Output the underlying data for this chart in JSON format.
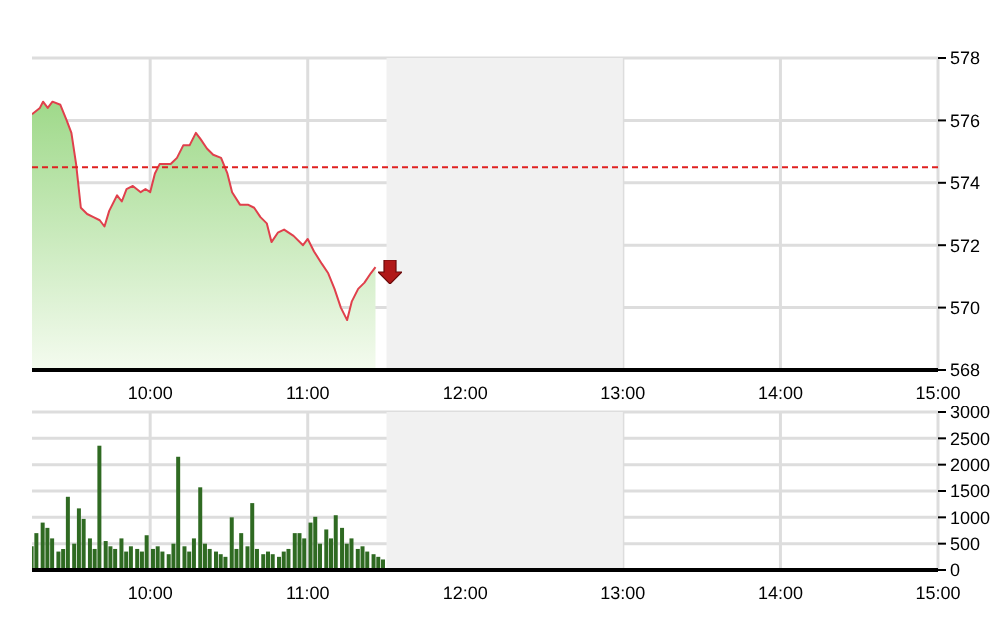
{
  "chart_data": [
    {
      "type": "area",
      "x": [
        9.25,
        9.3,
        9.32,
        9.35,
        9.38,
        9.43,
        9.47,
        9.5,
        9.53,
        9.56,
        9.6,
        9.64,
        9.68,
        9.71,
        9.74,
        9.79,
        9.82,
        9.85,
        9.89,
        9.94,
        9.97,
        10.0,
        10.03,
        10.06,
        10.13,
        10.17,
        10.21,
        10.25,
        10.29,
        10.32,
        10.36,
        10.4,
        10.45,
        10.49,
        10.52,
        10.57,
        10.62,
        10.66,
        10.7,
        10.74,
        10.77,
        10.81,
        10.85,
        10.91,
        10.97,
        11.0,
        11.04,
        11.09,
        11.13,
        11.17,
        11.21,
        11.25,
        11.28,
        11.32,
        11.36,
        11.4,
        11.43
      ],
      "values": [
        576.2,
        576.4,
        576.6,
        576.4,
        576.6,
        576.5,
        576.0,
        575.6,
        574.6,
        573.2,
        573.0,
        572.9,
        572.8,
        572.6,
        573.1,
        573.6,
        573.4,
        573.8,
        573.9,
        573.7,
        573.8,
        573.7,
        574.3,
        574.6,
        574.6,
        574.8,
        575.2,
        575.2,
        575.6,
        575.4,
        575.1,
        574.9,
        574.8,
        574.3,
        573.7,
        573.3,
        573.3,
        573.2,
        572.9,
        572.7,
        572.1,
        572.4,
        572.5,
        572.3,
        572.0,
        572.2,
        571.8,
        571.4,
        571.1,
        570.6,
        570.0,
        569.6,
        570.2,
        570.6,
        570.8,
        571.1,
        571.3
      ],
      "color": "#e0404c",
      "xlim": [
        9.25,
        15
      ],
      "xticks": [
        {
          "value": 10,
          "label": "10:00"
        },
        {
          "value": 11,
          "label": "11:00"
        },
        {
          "value": 12,
          "label": "12:00"
        },
        {
          "value": 13,
          "label": "13:00"
        },
        {
          "value": 14,
          "label": "14:00"
        },
        {
          "value": 15,
          "label": "15:00"
        }
      ],
      "ylim": [
        568,
        578
      ],
      "yticks": [
        568,
        570,
        572,
        574,
        576,
        578
      ],
      "ref_lines": [
        {
          "axis": "y",
          "value": 574.5,
          "color": "#e02020",
          "line_style": "dashed"
        }
      ],
      "bands": [
        {
          "axis": "x",
          "from": 11.5,
          "to": 13,
          "color": "#f1f1f1"
        }
      ],
      "grid": true
    },
    {
      "type": "bar",
      "x": [
        9.25,
        9.28,
        9.32,
        9.35,
        9.38,
        9.42,
        9.45,
        9.48,
        9.52,
        9.55,
        9.58,
        9.62,
        9.65,
        9.68,
        9.72,
        9.75,
        9.78,
        9.82,
        9.85,
        9.88,
        9.92,
        9.95,
        9.98,
        10.02,
        10.05,
        10.08,
        10.12,
        10.15,
        10.18,
        10.22,
        10.25,
        10.28,
        10.32,
        10.35,
        10.38,
        10.42,
        10.45,
        10.48,
        10.52,
        10.55,
        10.58,
        10.62,
        10.65,
        10.68,
        10.72,
        10.75,
        10.78,
        10.82,
        10.85,
        10.88,
        10.92,
        10.95,
        10.98,
        11.02,
        11.05,
        11.08,
        11.12,
        11.15,
        11.18,
        11.22,
        11.25,
        11.28,
        11.32,
        11.35,
        11.38,
        11.42,
        11.45,
        11.48
      ],
      "values": [
        450,
        700,
        900,
        800,
        600,
        350,
        400,
        1390,
        500,
        1170,
        970,
        600,
        400,
        2360,
        550,
        450,
        400,
        600,
        350,
        450,
        400,
        350,
        660,
        400,
        450,
        350,
        300,
        500,
        2150,
        450,
        350,
        600,
        1570,
        500,
        400,
        350,
        300,
        250,
        1000,
        400,
        700,
        450,
        1270,
        400,
        300,
        350,
        300,
        250,
        350,
        400,
        700,
        700,
        600,
        900,
        1010,
        500,
        770,
        600,
        1040,
        800,
        500,
        600,
        400,
        450,
        350,
        300,
        250,
        200
      ],
      "color": "#2f6a22",
      "xlim": [
        9.25,
        15
      ],
      "xticks": [
        {
          "value": 10,
          "label": "10:00"
        },
        {
          "value": 11,
          "label": "11:00"
        },
        {
          "value": 12,
          "label": "12:00"
        },
        {
          "value": 13,
          "label": "13:00"
        },
        {
          "value": 14,
          "label": "14:00"
        },
        {
          "value": 15,
          "label": "15:00"
        }
      ],
      "ylim": [
        0,
        3000
      ],
      "yticks": [
        0,
        500,
        1000,
        1500,
        2000,
        2500,
        3000
      ],
      "bands": [
        {
          "axis": "x",
          "from": 11.5,
          "to": 13,
          "color": "#f1f1f1"
        }
      ],
      "grid": true
    }
  ]
}
